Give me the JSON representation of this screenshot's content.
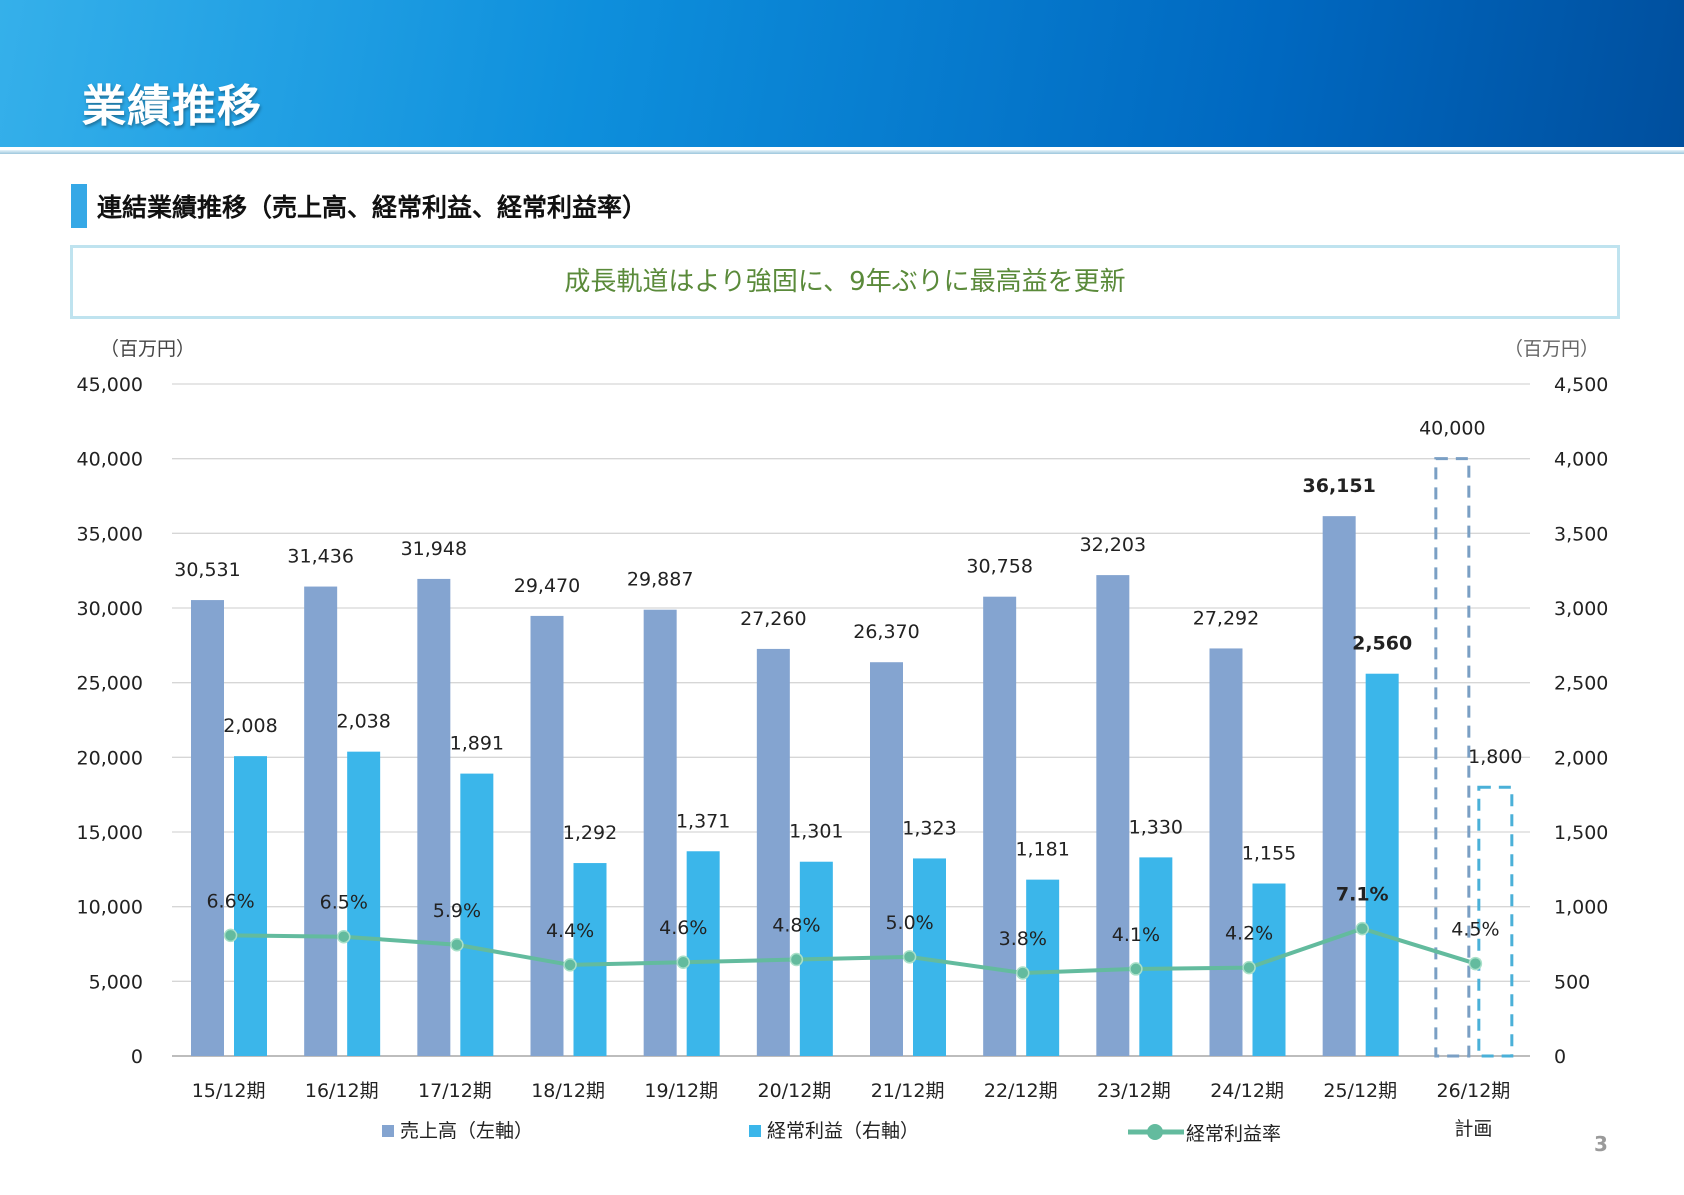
{
  "header": {
    "title": "業績推移"
  },
  "section": {
    "title": "連結業績推移（売上高、経常利益、経常利益率）"
  },
  "headline": "成長軌道はより強固に、9年ぶりに最高益を更新",
  "page_number": "3",
  "chart_data": {
    "type": "bar+line",
    "categories": [
      "15/12期",
      "16/12期",
      "17/12期",
      "18/12期",
      "19/12期",
      "20/12期",
      "21/12期",
      "22/12期",
      "23/12期",
      "24/12期",
      "25/12期",
      "26/12期"
    ],
    "category_note": {
      "26/12期": "計画"
    },
    "left_axis": {
      "unit": "（百万円）",
      "range": [
        0,
        45000
      ],
      "ticks": [
        "0",
        "5,000",
        "10,000",
        "15,000",
        "20,000",
        "25,000",
        "30,000",
        "35,000",
        "40,000",
        "45,000"
      ]
    },
    "right_axis": {
      "unit": "（百万円）",
      "range": [
        0,
        4500
      ],
      "ticks": [
        "0",
        "500",
        "1,000",
        "1,500",
        "2,000",
        "2,500",
        "3,000",
        "3,500",
        "4,000",
        "4,500"
      ]
    },
    "grid": true,
    "legend_position": "bottom",
    "series": [
      {
        "name": "売上高（左軸）",
        "type": "bar",
        "axis": "left",
        "color": "#84a4d0",
        "values": [
          30531,
          31436,
          31948,
          29470,
          29887,
          27260,
          26370,
          30758,
          32203,
          27292,
          36151,
          40000
        ],
        "labels": [
          "30,531",
          "31,436",
          "31,948",
          "29,470",
          "29,887",
          "27,260",
          "26,370",
          "30,758",
          "32,203",
          "27,292",
          "36,151",
          "40,000"
        ]
      },
      {
        "name": "経常利益（右軸）",
        "type": "bar",
        "axis": "right",
        "color": "#3bb6ea",
        "values": [
          2008,
          2038,
          1891,
          1292,
          1371,
          1301,
          1323,
          1181,
          1330,
          1155,
          2560,
          1800
        ],
        "labels": [
          "2,008",
          "2,038",
          "1,891",
          "1,292",
          "1,371",
          "1,301",
          "1,323",
          "1,181",
          "1,330",
          "1,155",
          "2,560",
          "1,800"
        ]
      },
      {
        "name": "経常利益率",
        "type": "line",
        "color": "#63bb9e",
        "values": [
          6.6,
          6.5,
          5.9,
          4.4,
          4.6,
          4.8,
          5.0,
          3.8,
          4.1,
          4.2,
          7.1,
          4.5
        ],
        "labels": [
          "6.6%",
          "6.5%",
          "5.9%",
          "4.4%",
          "4.6%",
          "4.8%",
          "5.0%",
          "3.8%",
          "4.1%",
          "4.2%",
          "7.1%",
          "4.5%"
        ]
      }
    ],
    "highlighted_category": "25/12期",
    "plan_category": "26/12期"
  }
}
